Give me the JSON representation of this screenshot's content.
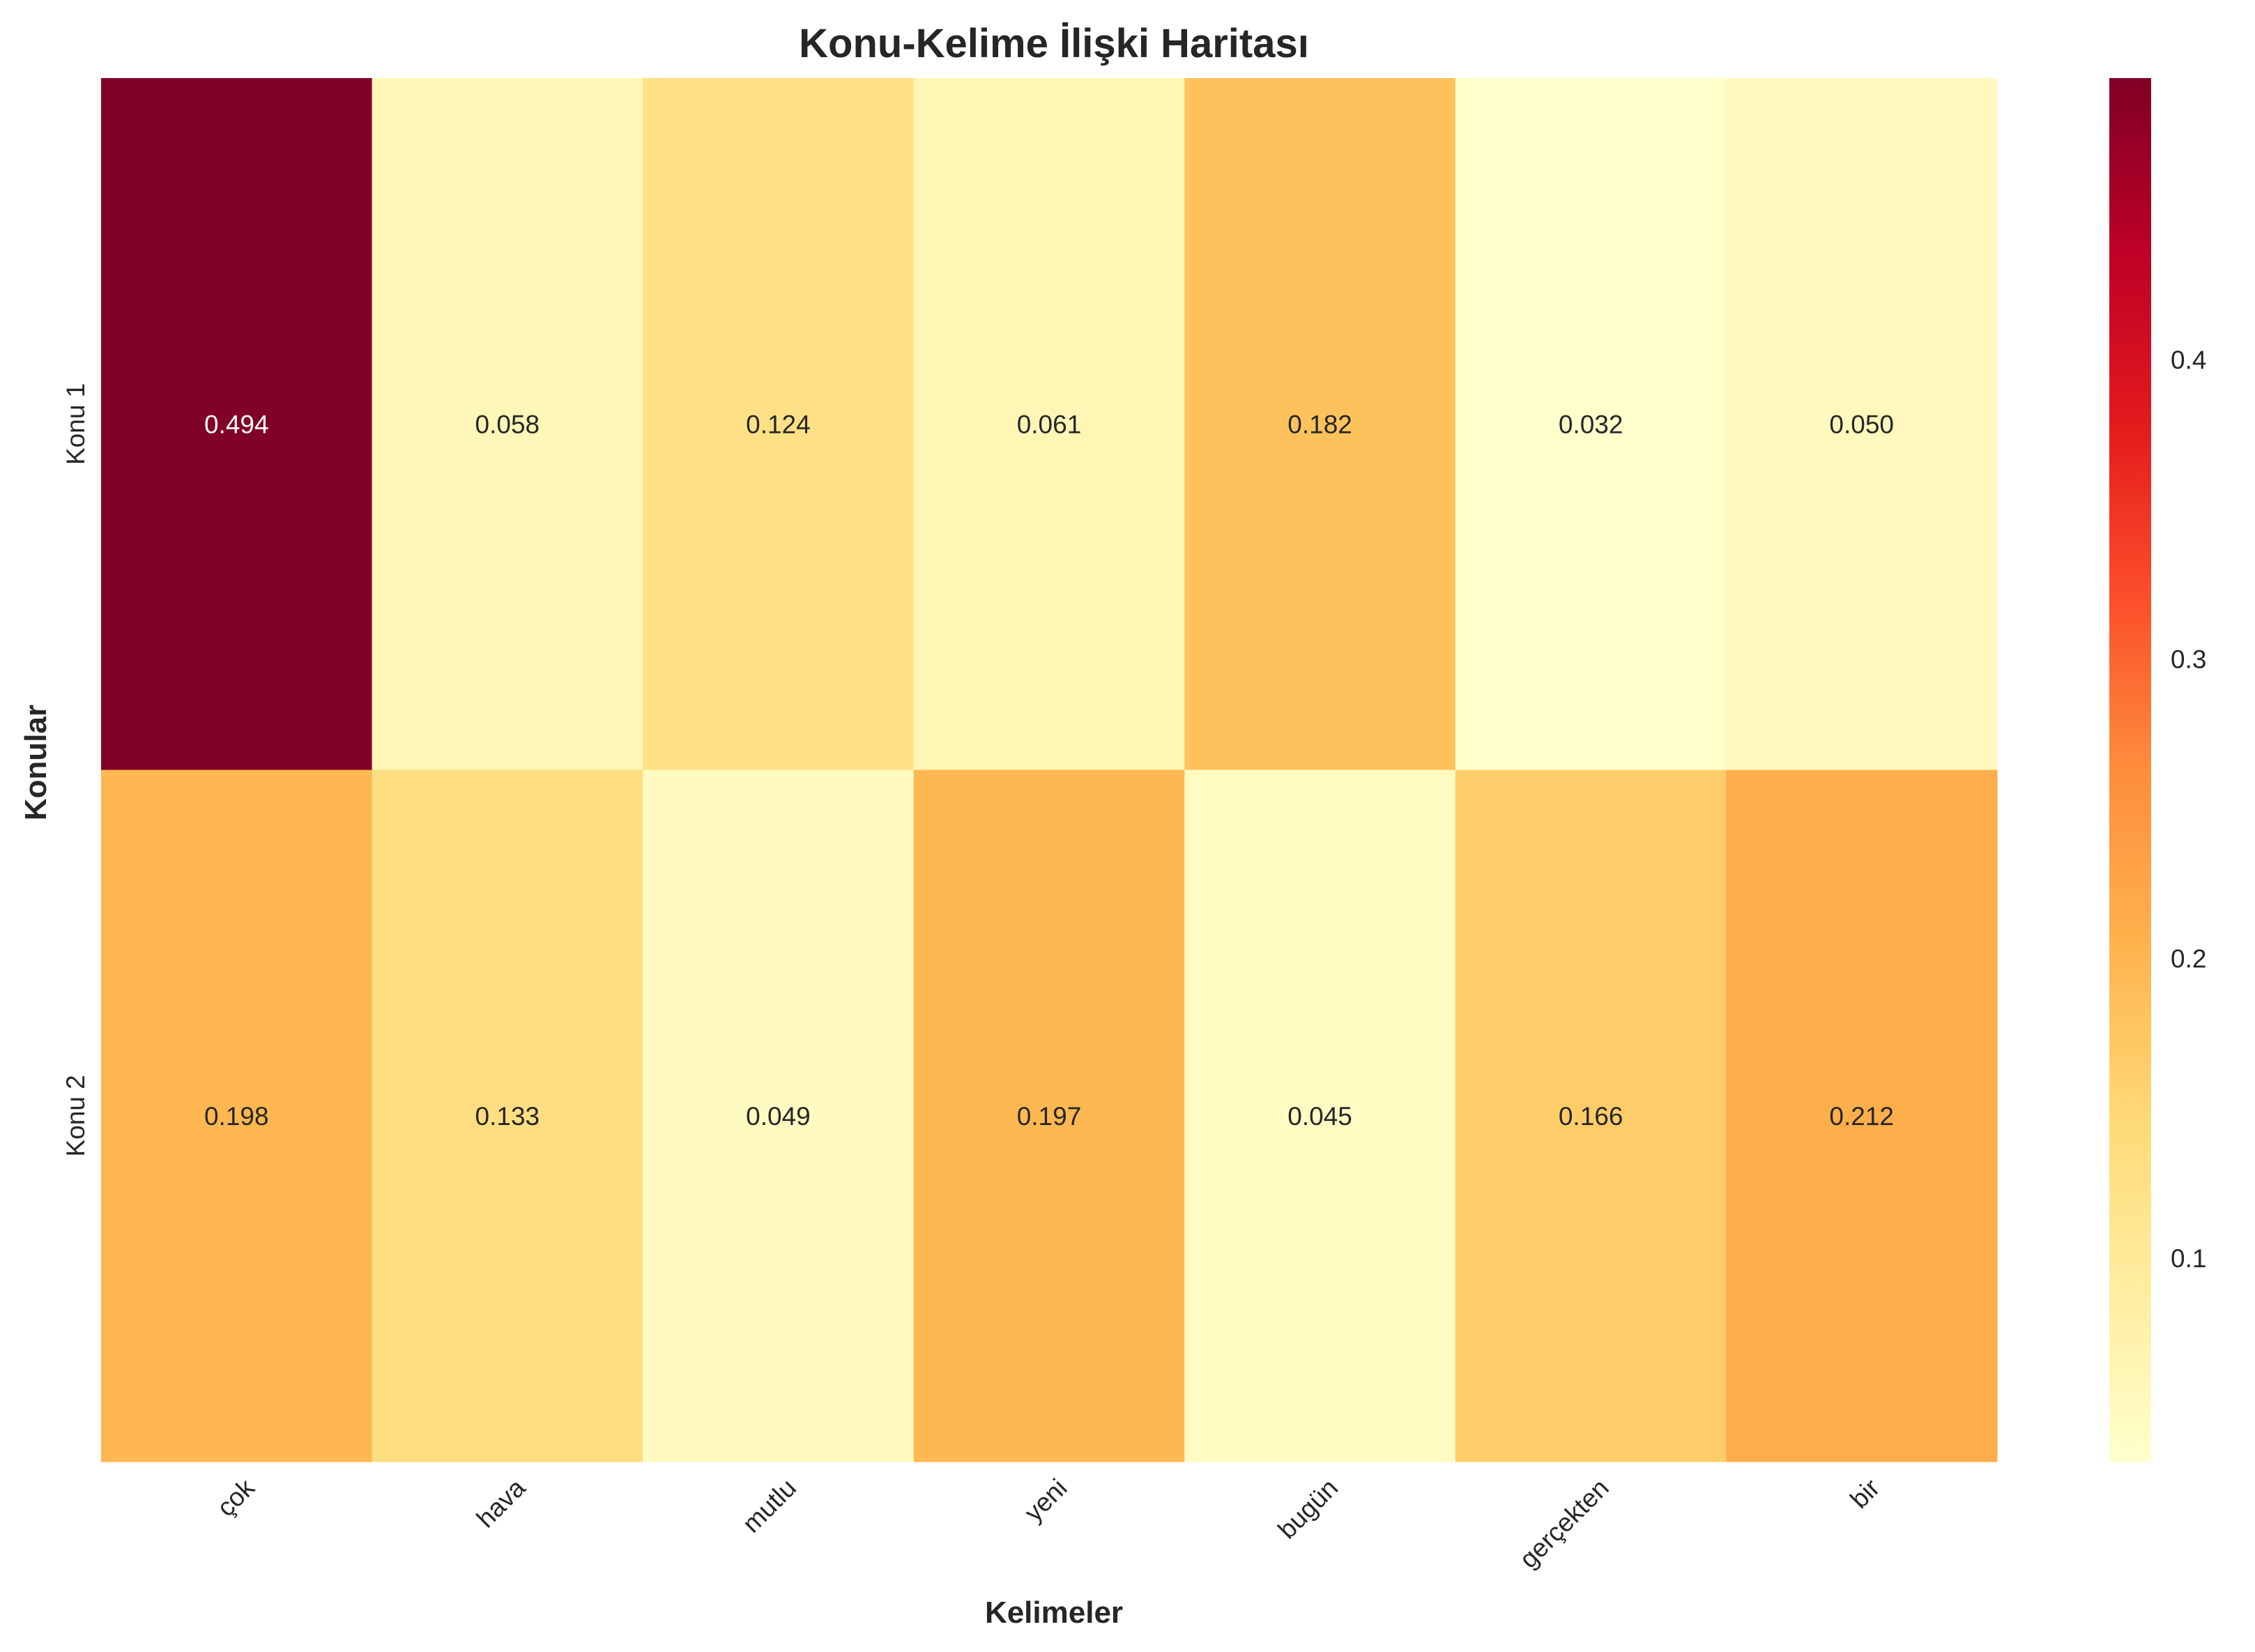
{
  "chart_data": {
    "type": "heatmap",
    "title": "Konu-Kelime İlişki Haritası",
    "xlabel": "Kelimeler",
    "ylabel": "Konular",
    "x_categories": [
      "çok",
      "hava",
      "mutlu",
      "yeni",
      "bugün",
      "gerçekten",
      "bir"
    ],
    "y_categories": [
      "Konu 1",
      "Konu 2"
    ],
    "values": [
      [
        "0.494",
        "0.058",
        "0.124",
        "0.061",
        "0.182",
        "0.032",
        "0.050"
      ],
      [
        "0.198",
        "0.133",
        "0.049",
        "0.197",
        "0.045",
        "0.166",
        "0.212"
      ]
    ],
    "colormap": "YlOrRd",
    "colorbar": {
      "range": [
        0.032,
        0.494
      ],
      "ticks": [
        "0.1",
        "0.2",
        "0.3",
        "0.4"
      ]
    },
    "grid": false
  }
}
